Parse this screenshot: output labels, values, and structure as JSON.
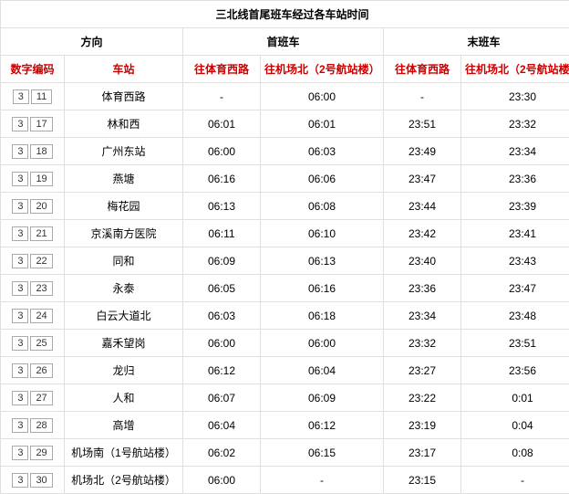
{
  "title": "三北线首尾班车经过各车站时间",
  "headers": {
    "direction": "方向",
    "first": "首班车",
    "last": "末班车",
    "code": "数字编码",
    "station": "车站",
    "to_west": "往体育西路",
    "to_airport": "往机场北（2号航站楼）"
  },
  "rows": [
    {
      "c1": "3",
      "c2": "11",
      "st": "体育西路",
      "a": "-",
      "b": "06:00",
      "c": "-",
      "d": "23:30"
    },
    {
      "c1": "3",
      "c2": "17",
      "st": "林和西",
      "a": "06:01",
      "b": "06:01",
      "c": "23:51",
      "d": "23:32"
    },
    {
      "c1": "3",
      "c2": "18",
      "st": "广州东站",
      "a": "06:00",
      "b": "06:03",
      "c": "23:49",
      "d": "23:34"
    },
    {
      "c1": "3",
      "c2": "19",
      "st": "燕塘",
      "a": "06:16",
      "b": "06:06",
      "c": "23:47",
      "d": "23:36"
    },
    {
      "c1": "3",
      "c2": "20",
      "st": "梅花园",
      "a": "06:13",
      "b": "06:08",
      "c": "23:44",
      "d": "23:39"
    },
    {
      "c1": "3",
      "c2": "21",
      "st": "京溪南方医院",
      "a": "06:11",
      "b": "06:10",
      "c": "23:42",
      "d": "23:41"
    },
    {
      "c1": "3",
      "c2": "22",
      "st": "同和",
      "a": "06:09",
      "b": "06:13",
      "c": "23:40",
      "d": "23:43"
    },
    {
      "c1": "3",
      "c2": "23",
      "st": "永泰",
      "a": "06:05",
      "b": "06:16",
      "c": "23:36",
      "d": "23:47"
    },
    {
      "c1": "3",
      "c2": "24",
      "st": "白云大道北",
      "a": "06:03",
      "b": "06:18",
      "c": "23:34",
      "d": "23:48"
    },
    {
      "c1": "3",
      "c2": "25",
      "st": "嘉禾望岗",
      "a": "06:00",
      "b": "06:00",
      "c": "23:32",
      "d": "23:51"
    },
    {
      "c1": "3",
      "c2": "26",
      "st": "龙归",
      "a": "06:12",
      "b": "06:04",
      "c": "23:27",
      "d": "23:56"
    },
    {
      "c1": "3",
      "c2": "27",
      "st": "人和",
      "a": "06:07",
      "b": "06:09",
      "c": "23:22",
      "d": "0:01"
    },
    {
      "c1": "3",
      "c2": "28",
      "st": "高增",
      "a": "06:04",
      "b": "06:12",
      "c": "23:19",
      "d": "0:04"
    },
    {
      "c1": "3",
      "c2": "29",
      "st": "机场南（1号航站楼）",
      "a": "06:02",
      "b": "06:15",
      "c": "23:17",
      "d": "0:08"
    },
    {
      "c1": "3",
      "c2": "30",
      "st": "机场北（2号航站楼）",
      "a": "06:00",
      "b": "-",
      "c": "23:15",
      "d": "-"
    }
  ]
}
